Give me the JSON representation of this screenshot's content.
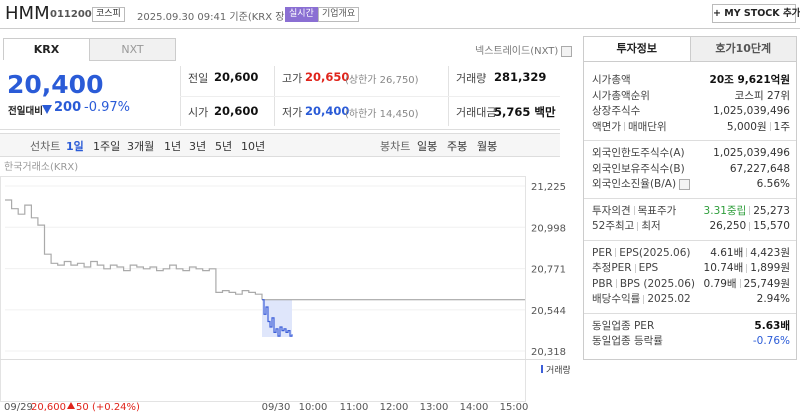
{
  "header": {
    "name": "HMM",
    "code": "011200",
    "market": "코스피",
    "timestamp": "2025.09.30 09:41 기준(KRX 장중)",
    "realtime": "실시간",
    "company_overview": "기업개요",
    "my_stock": "+ MY STOCK 추가"
  },
  "exchange_tabs": [
    "KRX",
    "NXT"
  ],
  "nxt_link": "넥스트레이드(NXT)",
  "quote": {
    "price": "20,400",
    "change_label": "전일대비",
    "change": "200",
    "change_rate": "-0.97%"
  },
  "quote_table": [
    {
      "label": "전일",
      "value": "20,600"
    },
    {
      "label": "고가",
      "value": "20,650",
      "note": "(상한가 26,750)"
    },
    {
      "label": "거래량",
      "value": "281,329"
    },
    {
      "label": "시가",
      "value": "20,600"
    },
    {
      "label": "저가",
      "value": "20,400",
      "note": "(하한가 14,450)"
    },
    {
      "label": "거래대금",
      "value": "5,765 백만"
    }
  ],
  "period_tabs": {
    "line_label": "선차트",
    "line": [
      "1일",
      "1주일",
      "3개월",
      "1년",
      "3년",
      "5년",
      "10년"
    ],
    "candle_label": "봉차트",
    "candle": [
      "일봉",
      "주봉",
      "월봉"
    ]
  },
  "chart_data": {
    "type": "line",
    "source": "한국거래소(KRX)",
    "ylim": [
      20318,
      21225
    ],
    "yticks": [
      {
        "value": 21225,
        "label": "21,225"
      },
      {
        "value": 20998,
        "label": "20,998"
      },
      {
        "value": 20771,
        "label": "20,771"
      },
      {
        "value": 20544,
        "label": "20,544"
      },
      {
        "value": 20318,
        "label": "20,318"
      }
    ],
    "reference_line": 20600,
    "x_labels": [
      "09/30",
      "10:00",
      "11:00",
      "12:00",
      "13:00",
      "14:00",
      "15:00"
    ],
    "series": [
      {
        "color": "#aaaaaa",
        "values": [
          21148,
          21100,
          21070,
          21120,
          21050,
          21010,
          20850,
          20800,
          20790,
          20810,
          20790,
          20800,
          20780,
          20810,
          20790,
          20770,
          20790,
          20780,
          20760,
          20790,
          20780,
          20770,
          20780,
          20760,
          20770,
          20790,
          20770,
          20760,
          20780,
          20770,
          20760,
          20770,
          20640,
          20650,
          20640,
          20630,
          20650,
          20640,
          20630,
          20600
        ]
      },
      {
        "color": "#3d5fd9",
        "values": [
          20600,
          20520,
          20560,
          20480,
          20450,
          20500,
          20420,
          20440,
          20400,
          20450,
          20430,
          20440,
          20420,
          20430,
          20400,
          20410
        ]
      }
    ],
    "volume_legend": "거래량",
    "previous_day": {
      "date": "09/29",
      "close": "20,600",
      "change": "50",
      "change_rate": "(+0.24%)"
    }
  },
  "invest_tabs": [
    "투자정보",
    "호가10단계"
  ],
  "invest_sections": [
    [
      {
        "labels": [
          "시가총액"
        ],
        "values": [
          "20조 9,621억원"
        ]
      },
      {
        "labels": [
          "시가총액순위"
        ],
        "values": [
          "코스피 27위"
        ]
      },
      {
        "labels": [
          "상장주식수"
        ],
        "values": [
          "1,025,039,496"
        ]
      },
      {
        "labels": [
          "액면가",
          "매매단위"
        ],
        "values": [
          "5,000원",
          "1주"
        ]
      }
    ],
    [
      {
        "labels": [
          "외국인한도주식수(A)"
        ],
        "values": [
          "1,025,039,496"
        ]
      },
      {
        "labels": [
          "외국인보유주식수(B)"
        ],
        "values": [
          "67,227,648"
        ]
      },
      {
        "labels": [
          "외국인소진율(B/A)"
        ],
        "values": [
          "6.56%"
        ]
      }
    ],
    [
      {
        "labels": [
          "투자의견",
          "목표주가"
        ],
        "values": [
          "3.31중립",
          "25,273"
        ]
      },
      {
        "labels": [
          "52주최고",
          "최저"
        ],
        "values": [
          "26,250",
          "15,570"
        ]
      }
    ],
    [
      {
        "labels": [
          "PER",
          "EPS(2025.06)"
        ],
        "values": [
          "4.61배",
          "4,423원"
        ]
      },
      {
        "labels": [
          "추정PER",
          "EPS"
        ],
        "values": [
          "10.74배",
          "1,899원"
        ]
      },
      {
        "labels": [
          "PBR",
          "BPS (2025.06)"
        ],
        "values": [
          "0.79배",
          "25,749원"
        ]
      },
      {
        "labels": [
          "배당수익률",
          "2025.02"
        ],
        "values": [
          "2.94%"
        ]
      }
    ],
    [
      {
        "labels": [
          "동일업종 PER"
        ],
        "values": [
          "5.63배"
        ]
      },
      {
        "labels": [
          "동일업종 등락률"
        ],
        "values": [
          "-0.76%"
        ]
      }
    ]
  ]
}
